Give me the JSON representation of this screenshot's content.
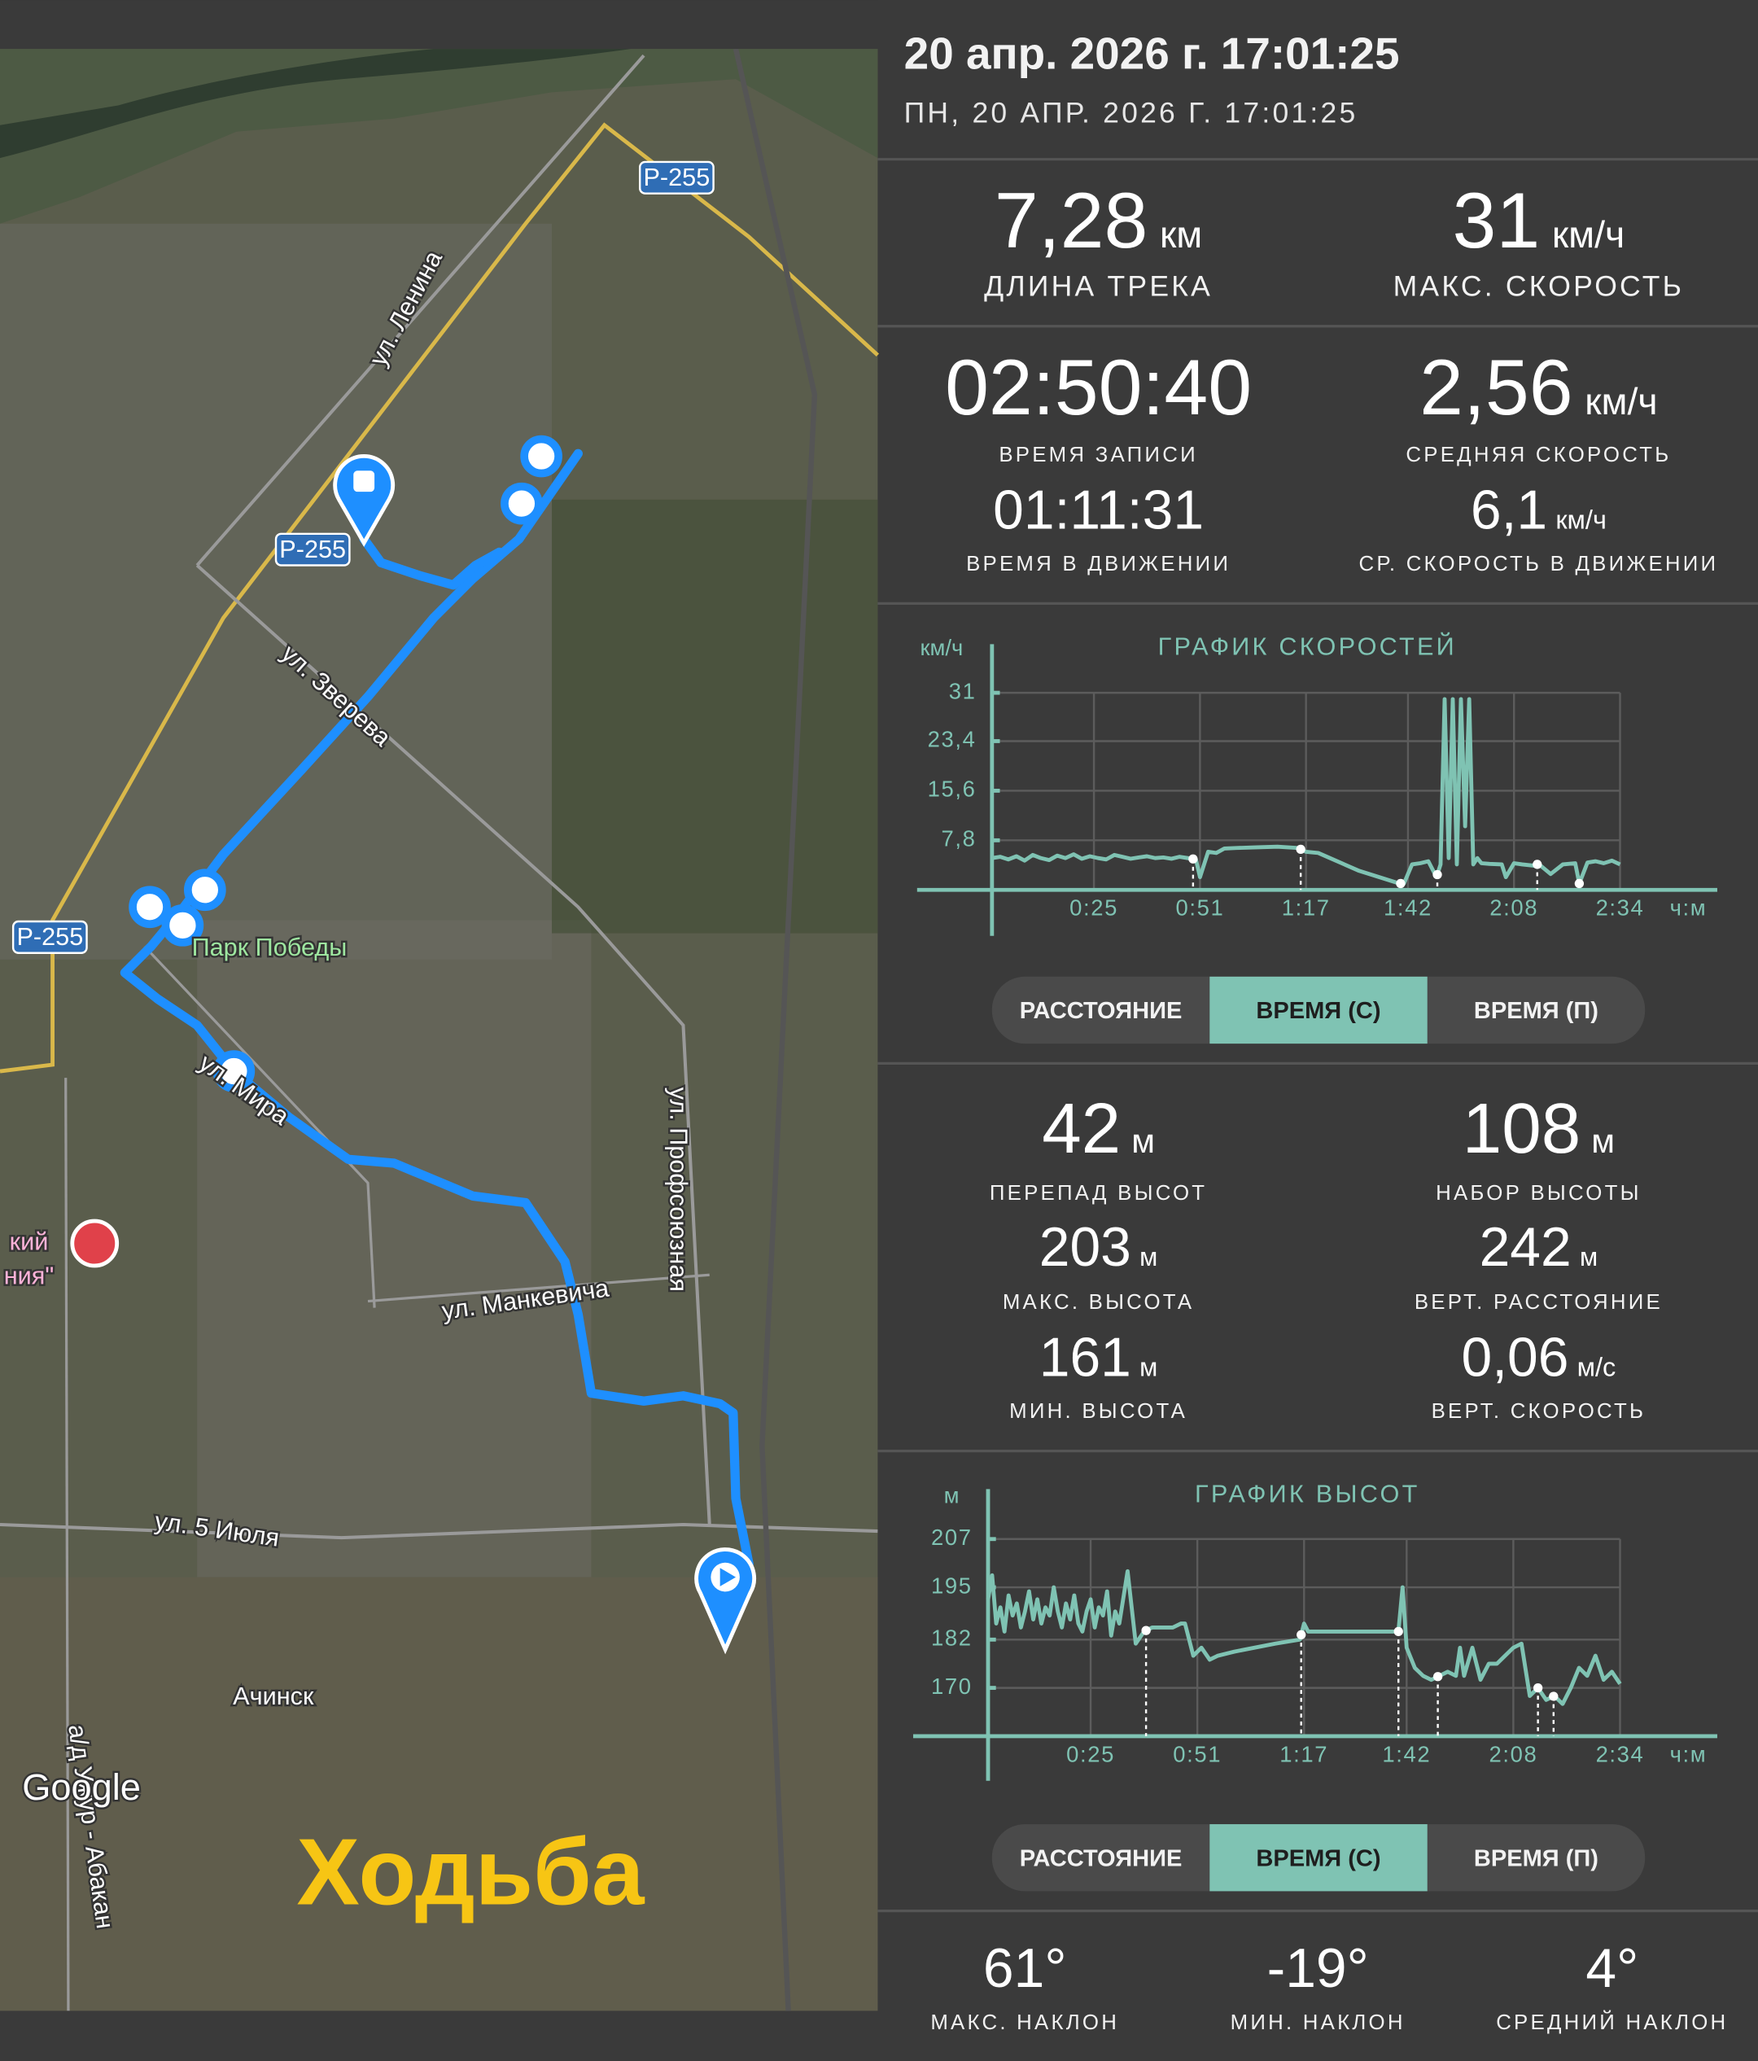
{
  "header": {
    "title": "20 апр. 2026 г. 17:01:25",
    "subtitle": "ПН, 20 АПР. 2026 Г. 17:01:25"
  },
  "map": {
    "labels": [
      "Р-255",
      "Р-255",
      "Р-255",
      "ул. Ленина",
      "ул. Зверева",
      "Парк Победы",
      "ул. Мира",
      "ул. Профсоюзная",
      "ул. Манкевича",
      "ул. 5 Июля",
      "Ачинск",
      "а/д Ужур - Абакан",
      "кий",
      "ния\""
    ],
    "attribution": "Google",
    "activity": "Ходьба"
  },
  "track_stats": [
    {
      "value": "7,28",
      "unit": "км",
      "label": "ДЛИНА ТРЕКА"
    },
    {
      "value": "31",
      "unit": "км/ч",
      "label": "МАКС. СКОРОСТЬ"
    }
  ],
  "time_stats": [
    {
      "value": "02:50:40",
      "label": "ВРЕМЯ ЗАПИСИ"
    },
    {
      "value": "2,56",
      "unit": "км/ч",
      "label": "СРЕДНЯЯ СКОРОСТЬ"
    },
    {
      "value": "01:11:31",
      "label": "ВРЕМЯ В ДВИЖЕНИИ"
    },
    {
      "value": "6,1",
      "unit": "км/ч",
      "label": "СР. СКОРОСТЬ В ДВИЖЕНИИ"
    }
  ],
  "altitude_stats": [
    {
      "value": "42",
      "unit": "м",
      "label": "ПЕРЕПАД ВЫСОТ"
    },
    {
      "value": "108",
      "unit": "м",
      "label": "НАБОР ВЫСОТЫ"
    },
    {
      "value": "203",
      "unit": "м",
      "label": "МАКС. ВЫСОТА"
    },
    {
      "value": "242",
      "unit": "м",
      "label": "ВЕРТ. РАССТОЯНИЕ"
    },
    {
      "value": "161",
      "unit": "м",
      "label": "МИН. ВЫСОТА"
    },
    {
      "value": "0,06",
      "unit": "м/с",
      "label": "ВЕРТ. СКОРОСТЬ"
    }
  ],
  "slope_stats": [
    {
      "value": "61°",
      "label": "МАКС. НАКЛОН"
    },
    {
      "value": "-19°",
      "label": "МИН. НАКЛОН"
    },
    {
      "value": "4°",
      "label": "СРЕДНИЙ НАКЛОН"
    }
  ],
  "chart_data": [
    {
      "type": "line",
      "title": "ГРАФИК СКОРОСТЕЙ",
      "y_label": "км/ч",
      "x_label": "ч:м",
      "color": "#7fc3b3",
      "grid": true,
      "xlim": [
        0,
        154
      ],
      "ylim": [
        0,
        31
      ],
      "xticks": [
        {
          "value": 25,
          "label": "0:25"
        },
        {
          "value": 51,
          "label": "0:51"
        },
        {
          "value": 77,
          "label": "1:17"
        },
        {
          "value": 102,
          "label": "1:42"
        },
        {
          "value": 128,
          "label": "2:08"
        },
        {
          "value": 154,
          "label": "2:34"
        }
      ],
      "yticks": [
        {
          "value": 7.8,
          "label": "7,8"
        },
        {
          "value": 15.6,
          "label": "15,6"
        },
        {
          "value": 23.4,
          "label": "23,4"
        },
        31
      ],
      "x": [
        0,
        2,
        4,
        6,
        8,
        10,
        12,
        14,
        16,
        18,
        20,
        22,
        24,
        26,
        28,
        30,
        32,
        34,
        36,
        38,
        40,
        42,
        44,
        46,
        48,
        50,
        51,
        53,
        55,
        57,
        60,
        65,
        70,
        75,
        77,
        80,
        90,
        100,
        101,
        103,
        105,
        107,
        109,
        110,
        111,
        112,
        113,
        114,
        115,
        116,
        117,
        118,
        119,
        120,
        122,
        125,
        126,
        128,
        130,
        133,
        134,
        137,
        140,
        143,
        144,
        146,
        148,
        150,
        152,
        154
      ],
      "series": [
        {
          "color": "#7fc3b3",
          "values": [
            5,
            5.2,
            4.8,
            5.3,
            4.6,
            5.5,
            5,
            4.7,
            5.4,
            5,
            5.6,
            4.9,
            5.3,
            5,
            4.8,
            5.5,
            5.2,
            4.9,
            5.1,
            5.3,
            5,
            5.1,
            4.9,
            5.2,
            5,
            4.8,
            2,
            6,
            5.8,
            6.5,
            6.6,
            6.7,
            6.8,
            6.6,
            6,
            5.8,
            3,
            1,
            1,
            4,
            4.2,
            4.5,
            2,
            4,
            30,
            5,
            30,
            4,
            30,
            10,
            30,
            4,
            5,
            4.2,
            4.1,
            4,
            2,
            4.2,
            4,
            3.8,
            4.1,
            2.5,
            4,
            4.2,
            1,
            4.3,
            4.5,
            4.2,
            4.6,
            4
          ]
        }
      ],
      "markers": [
        49.3,
        75.7,
        100.2,
        109.2,
        133.7,
        144
      ],
      "tabs": [
        "РАССТОЯНИЕ",
        "ВРЕМЯ (С)",
        "ВРЕМЯ (П)"
      ],
      "active_tab": 1
    },
    {
      "type": "line",
      "title": "ГРАФИК ВЫСОТ",
      "y_label": "м",
      "x_label": "ч:м",
      "color": "#7fc3b3",
      "grid": true,
      "xlim": [
        0,
        154
      ],
      "ylim": [
        158,
        207
      ],
      "xticks": [
        {
          "value": 25,
          "label": "0:25"
        },
        {
          "value": 51,
          "label": "0:51"
        },
        {
          "value": 77,
          "label": "1:17"
        },
        {
          "value": 102,
          "label": "1:42"
        },
        {
          "value": 128,
          "label": "2:08"
        },
        {
          "value": 154,
          "label": "2:34"
        }
      ],
      "yticks": [
        170,
        182,
        195,
        207
      ],
      "x": [
        0,
        1,
        2,
        3,
        4,
        5,
        6,
        7,
        8,
        9,
        10,
        11,
        12,
        13,
        14,
        15,
        16,
        17,
        18,
        19,
        20,
        21,
        22,
        23,
        24,
        25,
        26,
        27,
        28,
        29,
        30,
        31,
        32,
        34,
        36,
        38,
        40,
        45,
        47,
        48,
        50,
        52,
        54,
        56,
        60,
        70,
        76,
        77,
        78,
        90,
        100,
        101,
        102,
        104,
        106,
        108,
        110,
        112,
        114,
        115,
        116,
        118,
        120,
        122,
        124,
        126,
        128,
        130,
        132,
        134,
        136,
        138,
        140,
        142,
        144,
        146,
        148,
        150,
        152,
        154
      ],
      "series": [
        {
          "color": "#7fc3b3",
          "values": [
            192,
            198,
            186,
            190,
            184,
            193,
            188,
            191,
            185,
            189,
            194,
            187,
            192,
            186,
            190,
            188,
            195,
            189,
            185,
            191,
            187,
            193,
            186,
            184,
            189,
            192,
            185,
            190,
            188,
            194,
            183,
            189,
            186,
            199,
            181,
            184,
            185,
            185,
            186,
            186,
            178,
            180,
            177,
            178,
            179,
            181,
            182,
            186,
            184,
            184,
            184,
            195,
            180,
            175,
            173,
            172,
            173,
            174,
            173,
            180,
            173,
            180,
            172,
            176,
            176,
            178,
            180,
            181,
            168,
            170,
            167,
            168,
            166,
            170,
            175,
            173,
            178,
            172,
            174,
            171
          ]
        }
      ],
      "markers": [
        38.5,
        76.3,
        100,
        109.6,
        134,
        137.8
      ],
      "tabs": [
        "РАССТОЯНИЕ",
        "ВРЕМЯ (С)",
        "ВРЕМЯ (П)"
      ],
      "active_tab": 1
    }
  ]
}
